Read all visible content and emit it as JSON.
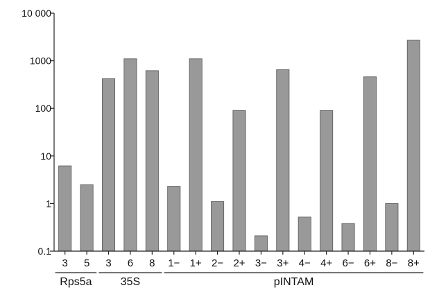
{
  "chart_data": {
    "type": "bar",
    "scale": "log",
    "ylim": [
      0.1,
      10000
    ],
    "yticks": [
      0.1,
      1,
      10,
      100,
      1000,
      10000
    ],
    "ytick_labels": [
      "0.1",
      "1",
      "10",
      "100",
      "1000",
      "10 000"
    ],
    "grid": false,
    "bar_color": "#999999",
    "bar_edge_color": "#555555",
    "categories": [
      "3",
      "5",
      "3",
      "6",
      "8",
      "1−",
      "1+",
      "2−",
      "2+",
      "3−",
      "3+",
      "4−",
      "4+",
      "6−",
      "6+",
      "8−",
      "8+"
    ],
    "values": [
      6.2,
      2.5,
      420,
      1100,
      620,
      2.3,
      1100,
      1.1,
      90,
      0.21,
      650,
      0.52,
      90,
      0.38,
      460,
      1.0,
      2700
    ],
    "groups": [
      {
        "label": "Rps5a",
        "start": 0,
        "end": 1
      },
      {
        "label": "35S",
        "start": 2,
        "end": 4
      },
      {
        "label": "pINTAM",
        "start": 5,
        "end": 16
      }
    ]
  }
}
